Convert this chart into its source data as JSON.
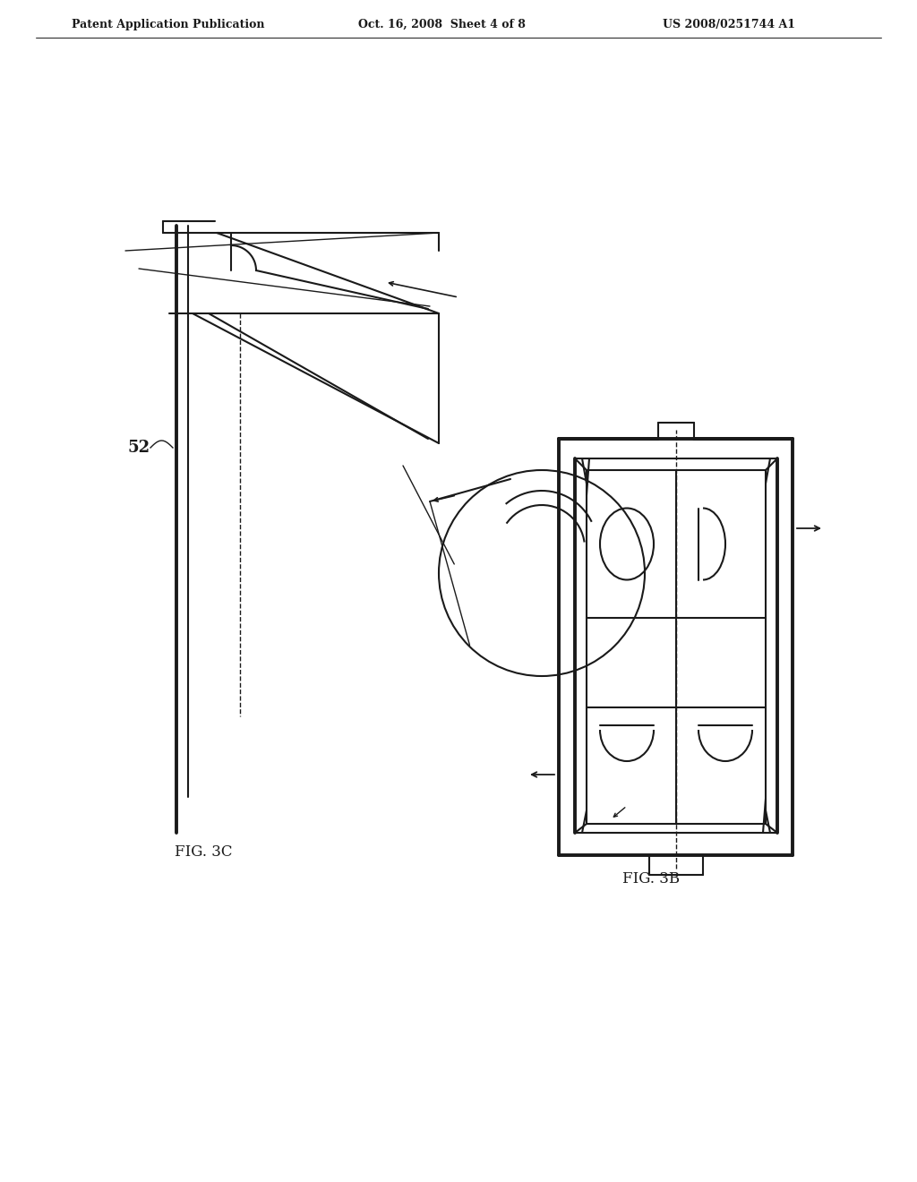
{
  "bg_color": "#ffffff",
  "line_color": "#1a1a1a",
  "header_left": "Patent Application Publication",
  "header_center": "Oct. 16, 2008  Sheet 4 of 8",
  "header_right": "US 2008/0251744 A1",
  "fig3c_label": "FIG. 3C",
  "fig3b_label": "FIG. 3B",
  "label_52": "52"
}
